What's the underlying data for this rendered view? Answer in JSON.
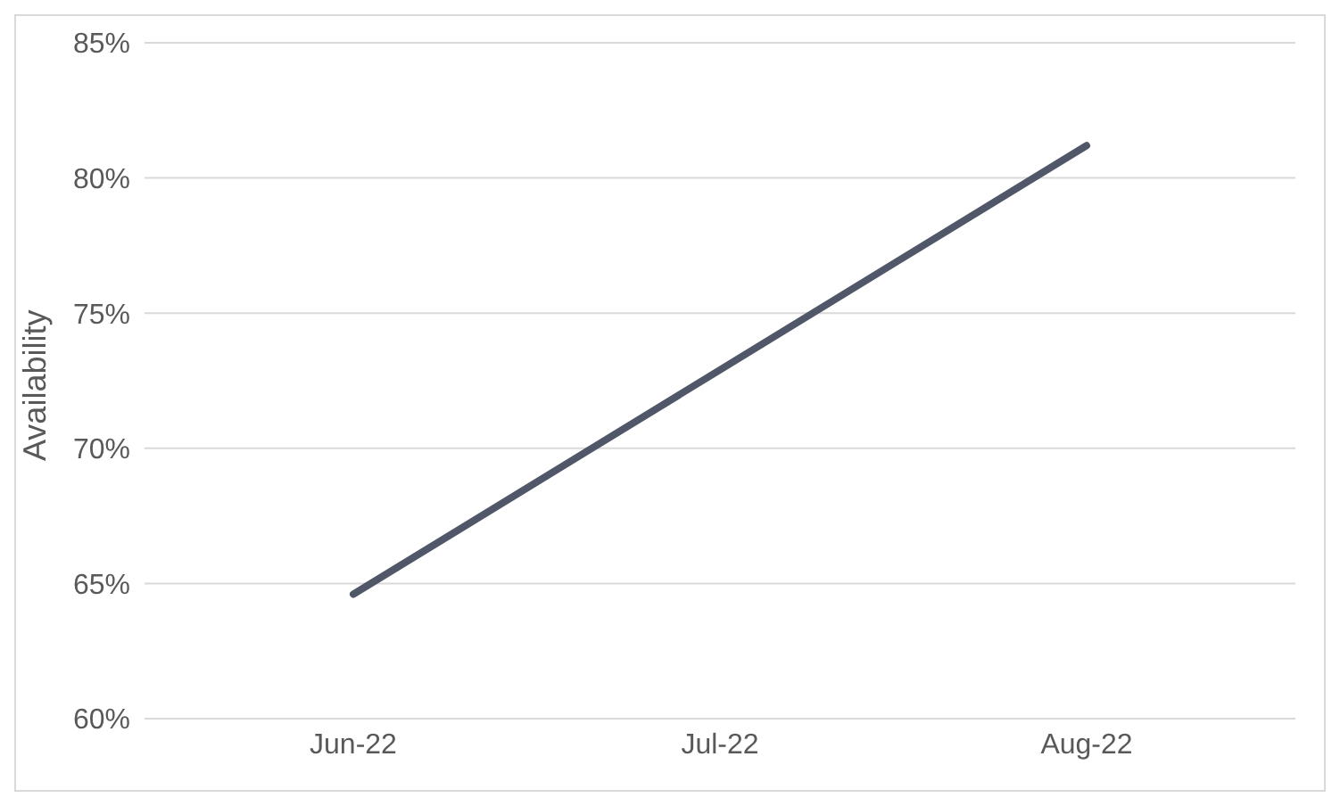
{
  "chart_data": {
    "type": "line",
    "ylabel": "Availability",
    "categories": [
      "Jun-22",
      "Jul-22",
      "Aug-22"
    ],
    "series": [
      {
        "color": "#4f5768",
        "values": [
          64.6,
          72.9,
          81.2
        ]
      }
    ],
    "ylim": [
      60,
      85
    ],
    "yticks": [
      {
        "value": 60,
        "label": "60%"
      },
      {
        "value": 65,
        "label": "65%"
      },
      {
        "value": 70,
        "label": "70%"
      },
      {
        "value": 75,
        "label": "75%"
      },
      {
        "value": 80,
        "label": "80%"
      },
      {
        "value": 85,
        "label": "85%"
      }
    ],
    "grid": "y",
    "marker": "none",
    "line_style": "solid"
  }
}
